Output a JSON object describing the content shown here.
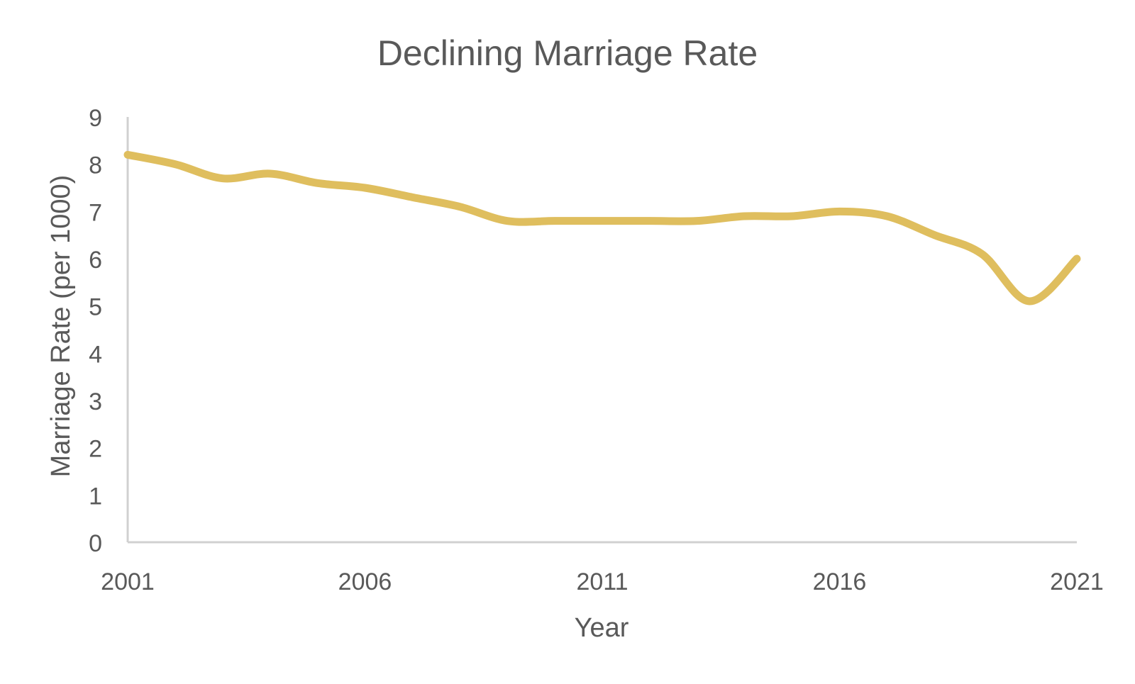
{
  "colors": {
    "line": "#DFBE5E",
    "axis": "#D0D0D0",
    "text": "#595959",
    "background": "#FFFFFF"
  },
  "chart_data": {
    "type": "line",
    "title": "Declining Marriage Rate",
    "xlabel": "Year",
    "ylabel": "Marriage Rate (per 1000)",
    "xlim": [
      2001,
      2021
    ],
    "ylim": [
      0,
      9
    ],
    "x_ticks": [
      2001,
      2006,
      2011,
      2016,
      2021
    ],
    "y_ticks": [
      0,
      1,
      2,
      3,
      4,
      5,
      6,
      7,
      8,
      9
    ],
    "grid": false,
    "legend": "none",
    "smooth": true,
    "series": [
      {
        "x": [
          2001,
          2002,
          2003,
          2004,
          2005,
          2006,
          2007,
          2008,
          2009,
          2010,
          2011,
          2012,
          2013,
          2014,
          2015,
          2016,
          2017,
          2018,
          2019,
          2020,
          2021
        ],
        "values": [
          8.2,
          8.0,
          7.7,
          7.8,
          7.6,
          7.5,
          7.3,
          7.1,
          6.8,
          6.8,
          6.8,
          6.8,
          6.8,
          6.9,
          6.9,
          7.0,
          6.9,
          6.5,
          6.1,
          5.1,
          6.0
        ]
      }
    ]
  }
}
